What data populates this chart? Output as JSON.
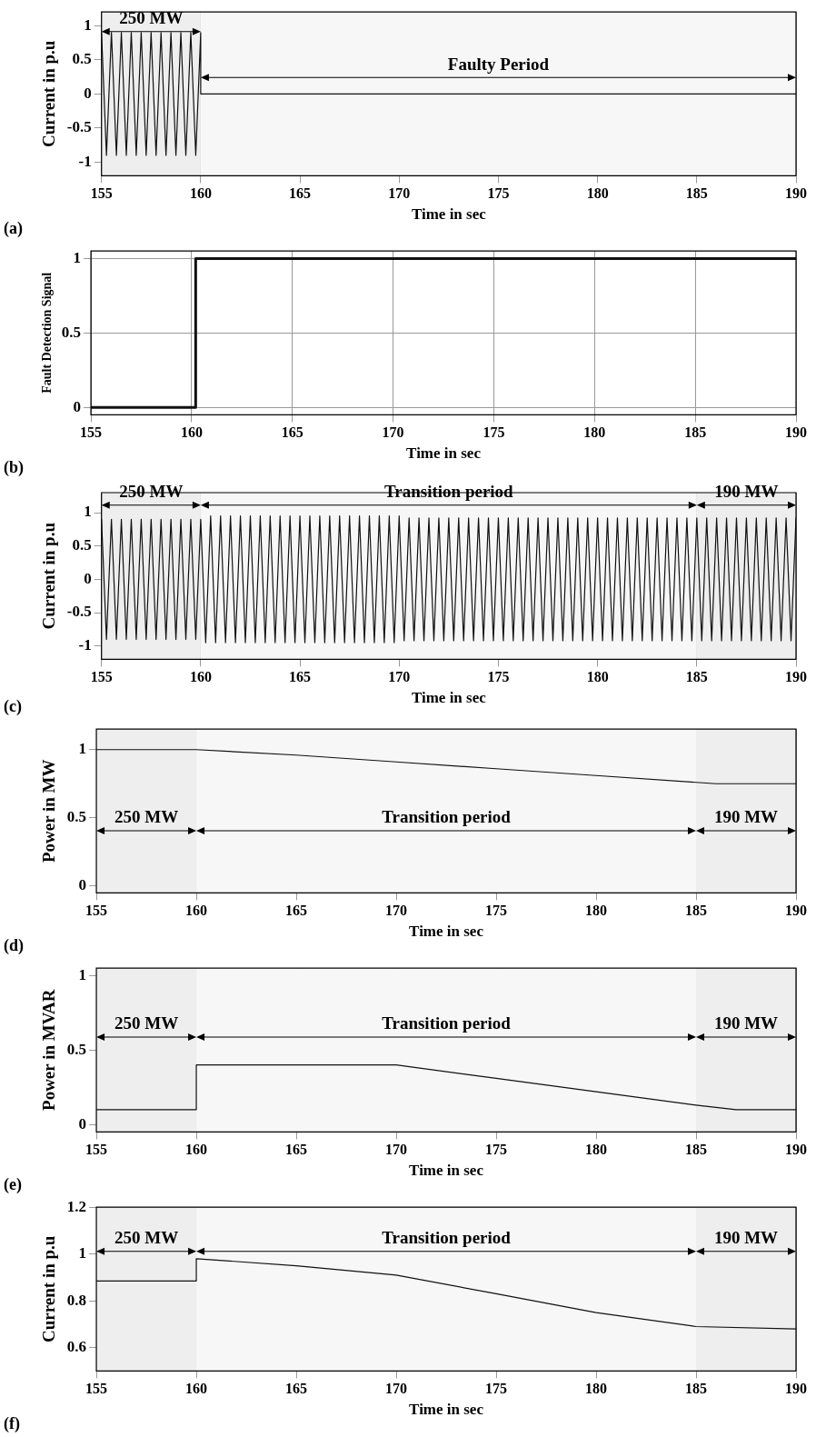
{
  "chart_data": [
    {
      "type": "line",
      "xlabel": "Time in sec",
      "ylabel": "Current in p.u",
      "color": "#111111",
      "marker": "none",
      "grid": true,
      "x": [
        155,
        155.25,
        155.5,
        155.75,
        156,
        156.25,
        156.5,
        156.75,
        157,
        157.25,
        157.5,
        157.75,
        158,
        158.25,
        158.5,
        158.75,
        159,
        159.25,
        159.5,
        159.75,
        160,
        160,
        190
      ],
      "values": [
        0.9,
        -0.9,
        0.9,
        -0.9,
        0.9,
        -0.9,
        0.9,
        -0.9,
        0.9,
        -0.9,
        0.9,
        -0.9,
        0.9,
        -0.9,
        0.9,
        -0.9,
        0.9,
        -0.9,
        0.9,
        -0.9,
        0.9,
        0,
        0
      ],
      "xlim": [
        155,
        190
      ],
      "ylim": [
        -1.2,
        1.2
      ],
      "xticks": [
        155,
        160,
        165,
        170,
        175,
        180,
        185,
        190
      ],
      "yticks": [
        -1,
        -0.5,
        0,
        0.5,
        1
      ],
      "bands": [
        {
          "axis": "x",
          "from": 155,
          "to": 160,
          "label": "250 MW",
          "color": "#eeeeee"
        },
        {
          "axis": "x",
          "from": 160,
          "to": 190,
          "label": "Faulty Period",
          "color": "#f7f7f7"
        }
      ],
      "annotations": [
        "(a)"
      ]
    },
    {
      "type": "line",
      "xlabel": "Time in sec",
      "ylabel": "Fault Detection Signal",
      "color": "#111111",
      "marker": "none",
      "grid": true,
      "x": [
        155,
        160.2,
        160.2,
        190
      ],
      "values": [
        0,
        0,
        1,
        1
      ],
      "xlim": [
        155,
        190
      ],
      "ylim": [
        -0.05,
        1.05
      ],
      "xticks": [
        155,
        160,
        165,
        170,
        175,
        180,
        185,
        190
      ],
      "yticks": [
        0,
        0.5,
        1
      ],
      "annotations": [
        "(b)"
      ]
    },
    {
      "type": "line",
      "xlabel": "Time in sec",
      "ylabel": "Current in p.u",
      "color": "#111111",
      "marker": "none",
      "grid": true,
      "x": [
        155,
        155.25,
        155.5,
        155.75,
        156,
        156.25,
        156.5,
        156.75,
        157,
        157.25,
        157.5,
        157.75,
        158,
        158.25,
        158.5,
        158.75,
        159,
        159.25,
        159.5,
        159.75,
        160,
        160.25,
        160.5,
        160.75,
        161,
        161.25,
        161.5,
        161.75,
        162,
        162.25,
        162.5,
        162.75,
        163,
        163.25,
        163.5,
        163.75,
        164,
        164.25,
        164.5,
        164.75,
        165,
        165.25,
        165.5,
        165.75,
        166,
        166.25,
        166.5,
        166.75,
        167,
        167.25,
        167.5,
        167.75,
        168,
        168.25,
        168.5,
        168.75,
        169,
        169.25,
        169.5,
        169.75,
        170,
        170.25,
        170.5,
        170.75,
        171,
        171.25,
        171.5,
        171.75,
        172,
        172.25,
        172.5,
        172.75,
        173,
        173.25,
        173.5,
        173.75,
        174,
        174.25,
        174.5,
        174.75,
        175,
        175.25,
        175.5,
        175.75,
        176,
        176.25,
        176.5,
        176.75,
        177,
        177.25,
        177.5,
        177.75,
        178,
        178.25,
        178.5,
        178.75,
        179,
        179.25,
        179.5,
        179.75,
        180,
        180.25,
        180.5,
        180.75,
        181,
        181.25,
        181.5,
        181.75,
        182,
        182.25,
        182.5,
        182.75,
        183,
        183.25,
        183.5,
        183.75,
        184,
        184.25,
        184.5,
        184.75,
        185,
        185.25,
        185.5,
        185.75,
        186,
        186.25,
        186.5,
        186.75,
        187,
        187.25,
        187.5,
        187.75,
        188,
        188.25,
        188.5,
        188.75,
        189,
        189.25,
        189.5,
        189.75,
        190
      ],
      "values": [
        0.9,
        -0.9,
        0.9,
        -0.9,
        0.9,
        -0.9,
        0.9,
        -0.9,
        0.9,
        -0.9,
        0.9,
        -0.9,
        0.9,
        -0.9,
        0.9,
        -0.9,
        0.9,
        -0.9,
        0.9,
        -0.9,
        0.9,
        -0.95,
        0.95,
        -0.95,
        0.95,
        -0.95,
        0.95,
        -0.95,
        0.95,
        -0.95,
        0.95,
        -0.95,
        0.95,
        -0.95,
        0.95,
        -0.95,
        0.95,
        -0.95,
        0.95,
        -0.95,
        0.95,
        -0.95,
        0.95,
        -0.95,
        0.95,
        -0.95,
        0.95,
        -0.95,
        0.95,
        -0.95,
        0.95,
        -0.95,
        0.95,
        -0.95,
        0.95,
        -0.95,
        0.95,
        -0.95,
        0.95,
        -0.95,
        0.95,
        -0.92,
        0.92,
        -0.92,
        0.92,
        -0.92,
        0.92,
        -0.92,
        0.92,
        -0.92,
        0.92,
        -0.92,
        0.92,
        -0.92,
        0.92,
        -0.92,
        0.92,
        -0.92,
        0.92,
        -0.92,
        0.92,
        -0.92,
        0.92,
        -0.92,
        0.92,
        -0.92,
        0.92,
        -0.92,
        0.92,
        -0.92,
        0.92,
        -0.92,
        0.92,
        -0.92,
        0.92,
        -0.92,
        0.92,
        -0.92,
        0.92,
        -0.92,
        0.92,
        -0.92,
        0.92,
        -0.92,
        0.92,
        -0.92,
        0.92,
        -0.92,
        0.92,
        -0.92,
        0.92,
        -0.92,
        0.92,
        -0.92,
        0.92,
        -0.92,
        0.92,
        -0.92,
        0.92,
        -0.92,
        0.92,
        -0.92,
        0.92,
        -0.92,
        0.92,
        -0.92,
        0.92,
        -0.92,
        0.92,
        -0.92,
        0.92,
        -0.92,
        0.92,
        -0.92,
        0.92,
        -0.92,
        0.92,
        -0.92,
        0.92,
        -0.92,
        0.92
      ],
      "xlim": [
        155,
        190
      ],
      "ylim": [
        -1.2,
        1.3
      ],
      "xticks": [
        155,
        160,
        165,
        170,
        175,
        180,
        185,
        190
      ],
      "yticks": [
        -1,
        -0.5,
        0,
        0.5,
        1
      ],
      "bands": [
        {
          "axis": "x",
          "from": 155,
          "to": 160,
          "label": "250 MW",
          "color": "#eeeeee"
        },
        {
          "axis": "x",
          "from": 160,
          "to": 185,
          "label": "Transition period",
          "color": "#f7f7f7"
        },
        {
          "axis": "x",
          "from": 185,
          "to": 190,
          "label": "190 MW",
          "color": "#eeeeee"
        }
      ],
      "annotations": [
        "(c)"
      ]
    },
    {
      "type": "line",
      "xlabel": "Time in sec",
      "ylabel": "Power in MW",
      "color": "#111111",
      "marker": "none",
      "grid": true,
      "x": [
        155,
        160,
        165,
        170,
        175,
        180,
        185,
        186,
        190
      ],
      "values": [
        1,
        1,
        0.96,
        0.91,
        0.86,
        0.81,
        0.76,
        0.75,
        0.75
      ],
      "xlim": [
        155,
        190
      ],
      "ylim": [
        -0.05,
        1.15
      ],
      "xticks": [
        155,
        160,
        165,
        170,
        175,
        180,
        185,
        190
      ],
      "yticks": [
        0,
        0.5,
        1
      ],
      "bands": [
        {
          "axis": "x",
          "from": 155,
          "to": 160,
          "label": "250 MW",
          "color": "#eeeeee"
        },
        {
          "axis": "x",
          "from": 160,
          "to": 185,
          "label": "Transition period",
          "color": "#f7f7f7"
        },
        {
          "axis": "x",
          "from": 185,
          "to": 190,
          "label": "190 MW",
          "color": "#eeeeee"
        }
      ],
      "annotations": [
        "(d)"
      ]
    },
    {
      "type": "line",
      "xlabel": "Time in sec",
      "ylabel": "Power in MVAR",
      "color": "#111111",
      "marker": "none",
      "grid": true,
      "x": [
        155,
        160,
        160,
        165,
        170,
        175,
        180,
        185,
        187,
        190
      ],
      "values": [
        0.1,
        0.1,
        0.4,
        0.4,
        0.4,
        0.31,
        0.22,
        0.13,
        0.1,
        0.1
      ],
      "xlim": [
        155,
        190
      ],
      "ylim": [
        -0.05,
        1.05
      ],
      "xticks": [
        155,
        160,
        165,
        170,
        175,
        180,
        185,
        190
      ],
      "yticks": [
        0,
        0.5,
        1
      ],
      "bands": [
        {
          "axis": "x",
          "from": 155,
          "to": 160,
          "label": "250 MW",
          "color": "#eeeeee"
        },
        {
          "axis": "x",
          "from": 160,
          "to": 185,
          "label": "Transition period",
          "color": "#f7f7f7"
        },
        {
          "axis": "x",
          "from": 185,
          "to": 190,
          "label": "190 MW",
          "color": "#eeeeee"
        }
      ],
      "annotations": [
        "(e)"
      ]
    },
    {
      "type": "line",
      "xlabel": "Time in sec",
      "ylabel": "Current in p.u",
      "color": "#111111",
      "marker": "none",
      "grid": true,
      "x": [
        155,
        160,
        160,
        165,
        170,
        175,
        180,
        185,
        190
      ],
      "values": [
        0.885,
        0.885,
        0.98,
        0.95,
        0.91,
        0.83,
        0.75,
        0.69,
        0.68
      ],
      "xlim": [
        155,
        190
      ],
      "ylim": [
        0.5,
        1.2
      ],
      "xticks": [
        155,
        160,
        165,
        170,
        175,
        180,
        185,
        190
      ],
      "yticks": [
        0.6,
        0.8,
        1,
        1.2
      ],
      "bands": [
        {
          "axis": "x",
          "from": 155,
          "to": 160,
          "label": "250 MW",
          "color": "#eeeeee"
        },
        {
          "axis": "x",
          "from": 160,
          "to": 185,
          "label": "Transition period",
          "color": "#f7f7f7"
        },
        {
          "axis": "x",
          "from": 185,
          "to": 190,
          "label": "190 MW",
          "color": "#eeeeee"
        }
      ],
      "annotations": [
        "(f)"
      ]
    }
  ]
}
